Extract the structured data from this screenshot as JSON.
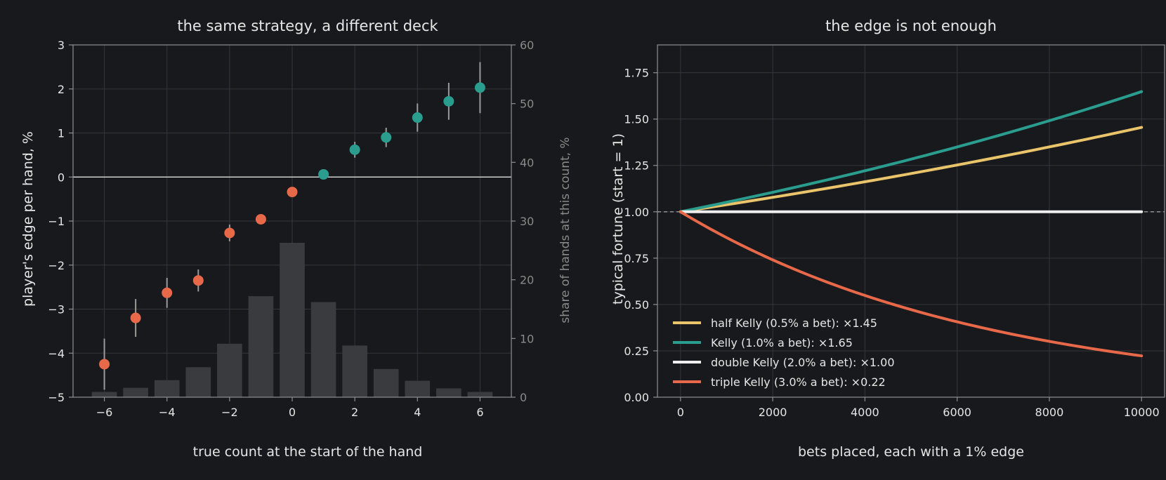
{
  "colors": {
    "background": "#18191d",
    "text": "#e6e6e6",
    "secondary_text": "#8a8a8a",
    "grid": "#34363b",
    "frame": "#8f8f8f",
    "bars": "#3a3b3f",
    "negative": "#e8684a",
    "positive": "#2a9d8f",
    "half_kelly": "#e9c46a",
    "kelly": "#2a9d8f",
    "double_kelly": "#eeeeee",
    "triple_kelly": "#e8684a"
  },
  "chart_data": [
    {
      "type": "scatter",
      "title": "the same strategy, a different deck",
      "xlabel": "true count at the start of the hand",
      "ylabel": "player's edge per hand, %",
      "y2label": "share of hands at this count, %",
      "xlim": [
        -7,
        7
      ],
      "ylim": [
        -5,
        3
      ],
      "y2lim": [
        0,
        60
      ],
      "xticks": [
        -6,
        -4,
        -2,
        0,
        2,
        4,
        6
      ],
      "xtick_labels": [
        "−6",
        "−4",
        "−2",
        "0",
        "2",
        "4",
        "6"
      ],
      "yticks": [
        -5,
        -4,
        -3,
        -2,
        -1,
        0,
        1,
        2,
        3
      ],
      "ytick_labels": [
        "−5",
        "−4",
        "−3",
        "−2",
        "−1",
        "0",
        "1",
        "2",
        "3"
      ],
      "y2ticks": [
        0,
        10,
        20,
        30,
        40,
        50,
        60
      ],
      "y2tick_labels": [
        "0",
        "10",
        "20",
        "30",
        "40",
        "50",
        "60"
      ],
      "grid": true,
      "zero_line": 0,
      "points": {
        "x": [
          -6,
          -5,
          -4,
          -3,
          -2,
          -1,
          0,
          1,
          2,
          3,
          4,
          5,
          6
        ],
        "y": [
          -4.25,
          -3.2,
          -2.63,
          -2.35,
          -1.27,
          -0.96,
          -0.34,
          0.06,
          0.62,
          0.9,
          1.35,
          1.72,
          2.03
        ],
        "err": [
          0.58,
          0.43,
          0.34,
          0.25,
          0.19,
          0.0,
          0.0,
          0.0,
          0.18,
          0.22,
          0.32,
          0.42,
          0.58
        ]
      },
      "bars": {
        "x": [
          -6,
          -5,
          -4,
          -3,
          -2,
          -1,
          0,
          1,
          2,
          3,
          4,
          5,
          6
        ],
        "values": [
          0.9,
          1.6,
          2.9,
          5.1,
          9.1,
          17.2,
          26.3,
          16.2,
          8.8,
          4.8,
          2.8,
          1.5,
          0.9
        ]
      }
    },
    {
      "type": "line",
      "title": "the edge is not enough",
      "xlabel": "bets placed, each with a 1% edge",
      "ylabel": "typical fortune (start = 1)",
      "xlim": [
        -500,
        10500
      ],
      "ylim": [
        0,
        1.9
      ],
      "xticks": [
        0,
        2000,
        4000,
        6000,
        8000,
        10000
      ],
      "xtick_labels": [
        "0",
        "2000",
        "4000",
        "6000",
        "8000",
        "10000"
      ],
      "yticks": [
        0,
        0.25,
        0.5,
        0.75,
        1.0,
        1.25,
        1.5,
        1.75
      ],
      "ytick_labels": [
        "0.00",
        "0.25",
        "0.50",
        "0.75",
        "1.00",
        "1.25",
        "1.50",
        "1.75"
      ],
      "grid": true,
      "reference_line": 1.0,
      "legend_position": "lower-left",
      "series": [
        {
          "name": "half Kelly (0.5% a bet): ×1.45",
          "color_key": "half_kelly",
          "final": 1.455
        },
        {
          "name": "Kelly (1.0% a bet): ×1.65",
          "color_key": "kelly",
          "final": 1.648
        },
        {
          "name": "double Kelly (2.0% a bet): ×1.00",
          "color_key": "double_kelly",
          "final": 1.0
        },
        {
          "name": "triple Kelly (3.0% a bet): ×0.22",
          "color_key": "triple_kelly",
          "final": 0.223
        }
      ]
    }
  ]
}
